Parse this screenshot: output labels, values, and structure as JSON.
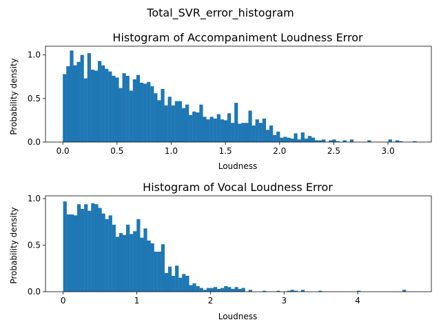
{
  "figure": {
    "suptitle": "Total_SVR_error_histogram"
  },
  "colors": {
    "bar": "#1f77b4",
    "axis": "#000000",
    "background": "#ffffff"
  },
  "chart_data": [
    {
      "type": "bar",
      "title": "Histogram of Accompaniment Loudness Error",
      "xlabel": "Loudness",
      "ylabel": "Probability density",
      "xlim": [
        -0.16,
        3.4
      ],
      "ylim": [
        0,
        1.1
      ],
      "xticks": [
        0.0,
        0.5,
        1.0,
        1.5,
        2.0,
        2.5,
        3.0
      ],
      "xtick_labels": [
        "0.0",
        "0.5",
        "1.0",
        "1.5",
        "2.0",
        "2.5",
        "3.0"
      ],
      "yticks": [
        0.0,
        0.5,
        1.0
      ],
      "ytick_labels": [
        "0.0",
        "0.5",
        "1.0"
      ],
      "grid": false,
      "bin_start": 0.0,
      "bin_width": 0.0323,
      "values": [
        0.78,
        0.87,
        1.05,
        0.88,
        0.92,
        1.0,
        0.73,
        1.02,
        0.83,
        0.82,
        0.93,
        0.88,
        0.84,
        0.81,
        0.76,
        0.74,
        0.62,
        0.79,
        0.76,
        0.59,
        0.72,
        0.77,
        0.68,
        0.67,
        0.69,
        0.64,
        0.56,
        0.48,
        0.61,
        0.42,
        0.52,
        0.42,
        0.47,
        0.47,
        0.39,
        0.43,
        0.31,
        0.35,
        0.34,
        0.43,
        0.29,
        0.26,
        0.29,
        0.27,
        0.32,
        0.26,
        0.25,
        0.33,
        0.22,
        0.45,
        0.21,
        0.22,
        0.22,
        0.36,
        0.19,
        0.26,
        0.22,
        0.27,
        0.14,
        0.19,
        0.08,
        0.12,
        0.05,
        0.06,
        0.05,
        0.04,
        0.1,
        0.03,
        0.11,
        0.04,
        0.07,
        0.05,
        0.02,
        0.02,
        0.03,
        0.0,
        0.02,
        0.03,
        0.01,
        0.0,
        0.02,
        0.0,
        0.03,
        0.0,
        0.0,
        0.0,
        0.0,
        0.02,
        0.0,
        0.0,
        0.0,
        0.0,
        0.0,
        0.03,
        0.0,
        0.02,
        0.01,
        0.0,
        0.0,
        0.0,
        0.01
      ]
    },
    {
      "type": "bar",
      "title": "Histogram of Vocal Loudness Error",
      "xlabel": "Loudness",
      "ylabel": "Probability density",
      "xlim": [
        -0.24,
        5.0
      ],
      "ylim": [
        0,
        1.03
      ],
      "xticks": [
        0,
        1,
        2,
        3,
        4
      ],
      "xtick_labels": [
        "0",
        "1",
        "2",
        "3",
        "4"
      ],
      "yticks": [
        0.0,
        0.5,
        1.0
      ],
      "ytick_labels": [
        "0.0",
        "0.5",
        "1.0"
      ],
      "grid": false,
      "bin_start": 0.0,
      "bin_width": 0.0475,
      "values": [
        0.97,
        0.83,
        0.83,
        0.82,
        0.94,
        0.89,
        0.94,
        0.87,
        0.95,
        0.94,
        0.9,
        0.84,
        0.78,
        0.82,
        0.72,
        0.59,
        0.63,
        0.61,
        0.72,
        0.62,
        0.65,
        0.78,
        0.58,
        0.68,
        0.55,
        0.52,
        0.43,
        0.43,
        0.51,
        0.2,
        0.27,
        0.17,
        0.28,
        0.15,
        0.19,
        0.17,
        0.07,
        0.09,
        0.06,
        0.04,
        0.02,
        0.04,
        0.04,
        0.05,
        0.03,
        0.04,
        0.06,
        0.05,
        0.03,
        0.05,
        0.03,
        0.04,
        0.0,
        0.02,
        0.0,
        0.0,
        0.0,
        0.01,
        0.0,
        0.0,
        0.0,
        0.01,
        0.0,
        0.0,
        0.01,
        0.02,
        0.01,
        0.0,
        0.02,
        0.0,
        0.0,
        0.0,
        0.0,
        0.01,
        0.0,
        0.0,
        0.0,
        0.0,
        0.0,
        0.0,
        0.0,
        0.0,
        0.0,
        0.0,
        0.01,
        0.0,
        0.0,
        0.0,
        0.0,
        0.0,
        0.0,
        0.0,
        0.0,
        0.0,
        0.0,
        0.0,
        0.0,
        0.02,
        0.0,
        0.0
      ]
    }
  ]
}
